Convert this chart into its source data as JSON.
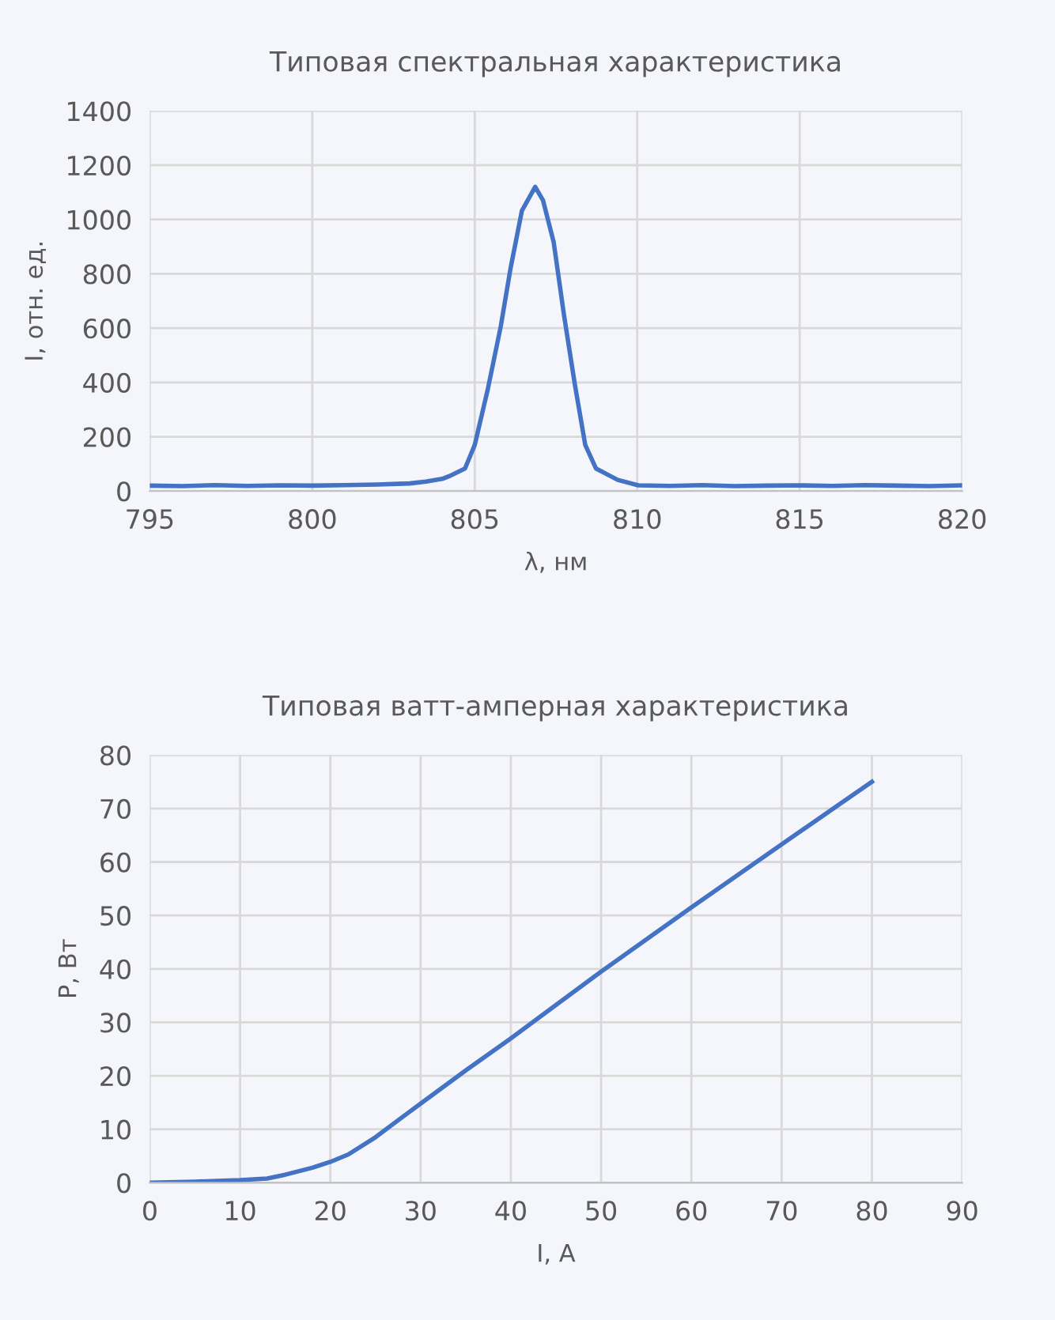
{
  "chart_data": [
    {
      "type": "line",
      "title": "Типовая спектральная характеристика",
      "xlabel": "λ, нм",
      "ylabel": "I, отн. ед.",
      "series": [
        {
          "color": "#4472c4",
          "x": [
            795,
            796,
            797,
            798,
            799,
            800,
            801,
            802,
            803,
            803.5,
            804,
            804.2,
            804.7,
            805.0,
            805.4,
            805.8,
            806.1,
            806.45,
            806.86,
            807.1,
            807.43,
            807.75,
            808.08,
            808.4,
            808.73,
            809.4,
            810.03,
            811,
            812,
            813,
            814,
            815,
            816,
            817,
            818,
            819,
            820
          ],
          "values": [
            20,
            18,
            22,
            19,
            21,
            20,
            22,
            24,
            28,
            35,
            45,
            54,
            83,
            170,
            374,
            606,
            819,
            1032,
            1120,
            1071,
            916,
            645,
            393,
            170,
            83,
            41,
            21,
            19,
            22,
            18,
            20,
            21,
            19,
            22,
            20,
            18,
            21
          ]
        }
      ],
      "xlim": [
        795,
        820
      ],
      "xticks": [
        795,
        800,
        805,
        810,
        815,
        820
      ],
      "ylim": [
        0,
        1400
      ],
      "yticks": [
        0,
        200,
        400,
        600,
        800,
        1000,
        1200,
        1400
      ],
      "grid": true
    },
    {
      "type": "line",
      "title": "Типовая ватт-амперная характеристика",
      "xlabel": "I, А",
      "ylabel": "P, Вт",
      "series": [
        {
          "color": "#4472c4",
          "x": [
            0,
            5,
            10,
            13,
            15,
            18,
            20,
            22,
            25,
            28,
            30,
            35,
            40,
            50,
            60,
            70,
            80
          ],
          "values": [
            0,
            0.2,
            0.5,
            0.8,
            1.5,
            2.8,
            3.9,
            5.3,
            8.5,
            12.3,
            14.8,
            21,
            27,
            39.5,
            51.5,
            63.3,
            75
          ]
        }
      ],
      "xlim": [
        0,
        90
      ],
      "xticks": [
        0,
        10,
        20,
        30,
        40,
        50,
        60,
        70,
        80,
        90
      ],
      "ylim": [
        0,
        80
      ],
      "yticks": [
        0,
        10,
        20,
        30,
        40,
        50,
        60,
        70,
        80
      ],
      "grid": true
    }
  ]
}
